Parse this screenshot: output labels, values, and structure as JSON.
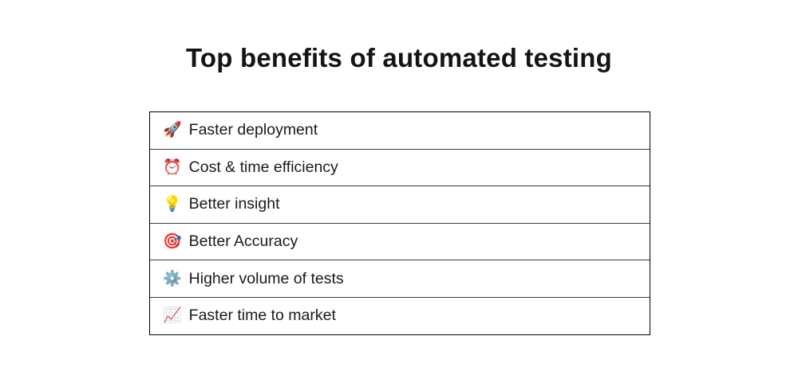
{
  "title": {
    "text": "Top benefits of automated testing",
    "color": "#141414"
  },
  "table": {
    "border_color": "#000000",
    "divider_color": "#3c3c3c",
    "rows": [
      {
        "icon": "🚀",
        "icon_name": "rocket-icon",
        "label": "Faster deployment"
      },
      {
        "icon": "⏰",
        "icon_name": "alarm-clock-icon",
        "label": "Cost & time efficiency"
      },
      {
        "icon": "💡",
        "icon_name": "light-bulb-icon",
        "label": "Better insight"
      },
      {
        "icon": "🎯",
        "icon_name": "target-icon",
        "label": "Better Accuracy"
      },
      {
        "icon": "⚙️",
        "icon_name": "gear-icon",
        "label": "Higher volume of tests"
      },
      {
        "icon": "📈",
        "icon_name": "chart-increasing-icon",
        "label": "Faster time to market"
      }
    ]
  }
}
